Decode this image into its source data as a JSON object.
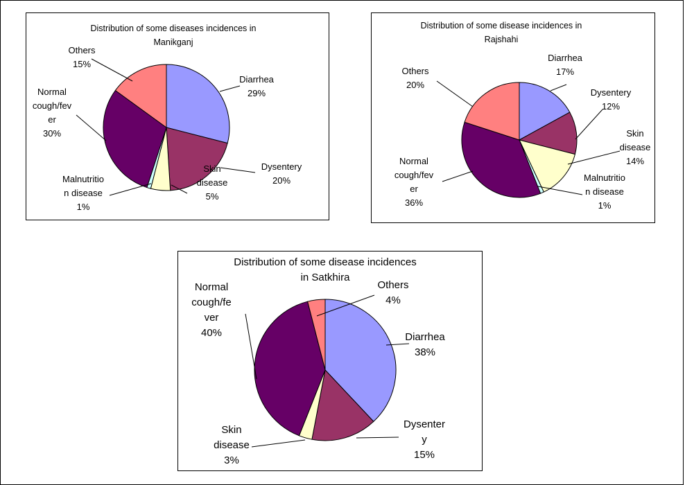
{
  "colors": {
    "Diarrhea": "#9999ff",
    "Dysentery": "#993366",
    "Skin disease": "#ffffcc",
    "Malnutrition disease": "#ccffff",
    "Normal cough/fever": "#660066",
    "Others": "#ff8080"
  },
  "chart_data": [
    {
      "type": "pie",
      "title": "Distribution of some diseases incidences in Manikganj",
      "title_lines": [
        "Distribution of some diseases incidences in",
        "Manikganj"
      ],
      "slices": [
        {
          "key": "Diarrhea",
          "value": 29,
          "label_lines": [
            "Diarrhea",
            "29%"
          ]
        },
        {
          "key": "Dysentery",
          "value": 20,
          "label_lines": [
            "Dysentery",
            "20%"
          ]
        },
        {
          "key": "Skin disease",
          "value": 5,
          "label_lines": [
            "Skin",
            "disease",
            "5%"
          ]
        },
        {
          "key": "Malnutrition disease",
          "value": 1,
          "label_lines": [
            "Malnutritio",
            "n disease",
            "1%"
          ]
        },
        {
          "key": "Normal cough/fever",
          "value": 30,
          "label_lines": [
            "Normal",
            "cough/fev",
            "er",
            "30%"
          ]
        },
        {
          "key": "Others",
          "value": 15,
          "label_lines": [
            "Others",
            "15%"
          ]
        }
      ]
    },
    {
      "type": "pie",
      "title": "Distribution of some disease incidences in Rajshahi",
      "title_lines": [
        "Distribution of some disease incidences in",
        "Rajshahi"
      ],
      "slices": [
        {
          "key": "Diarrhea",
          "value": 17,
          "label_lines": [
            "Diarrhea",
            "17%"
          ]
        },
        {
          "key": "Dysentery",
          "value": 12,
          "label_lines": [
            "Dysentery",
            "12%"
          ]
        },
        {
          "key": "Skin disease",
          "value": 14,
          "label_lines": [
            "Skin",
            "disease",
            "14%"
          ]
        },
        {
          "key": "Malnutrition disease",
          "value": 1,
          "label_lines": [
            "Malnutritio",
            "n disease",
            "1%"
          ]
        },
        {
          "key": "Normal cough/fever",
          "value": 36,
          "label_lines": [
            "Normal",
            "cough/fev",
            "er",
            "36%"
          ]
        },
        {
          "key": "Others",
          "value": 20,
          "label_lines": [
            "Others",
            "20%"
          ]
        }
      ]
    },
    {
      "type": "pie",
      "title": "Distribution of some disease incidences in Satkhira",
      "title_lines": [
        "Distribution of some disease incidences",
        "in Satkhira"
      ],
      "slices": [
        {
          "key": "Diarrhea",
          "value": 38,
          "label_lines": [
            "Diarrhea",
            "38%"
          ]
        },
        {
          "key": "Dysentery",
          "value": 15,
          "label_lines": [
            "Dysenter",
            "y",
            "15%"
          ]
        },
        {
          "key": "Skin disease",
          "value": 3,
          "label_lines": [
            "Skin",
            "disease",
            "3%"
          ]
        },
        {
          "key": "Normal cough/fever",
          "value": 40,
          "label_lines": [
            "Normal",
            "cough/fe",
            "ver",
            "40%"
          ]
        },
        {
          "key": "Others",
          "value": 4,
          "label_lines": [
            "Others",
            "4%"
          ]
        }
      ]
    }
  ]
}
